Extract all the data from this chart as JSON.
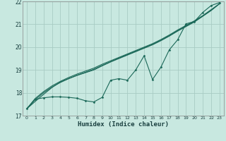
{
  "title": "",
  "xlabel": "Humidex (Indice chaleur)",
  "bg_color": "#c8e8e0",
  "grid_color": "#a8ccc4",
  "line_color": "#1a6858",
  "xlim": [
    -0.5,
    23.5
  ],
  "ylim": [
    17.0,
    22.0
  ],
  "xticks": [
    0,
    1,
    2,
    3,
    4,
    5,
    6,
    7,
    8,
    9,
    10,
    11,
    12,
    13,
    14,
    15,
    16,
    17,
    18,
    19,
    20,
    21,
    22,
    23
  ],
  "yticks": [
    17,
    18,
    19,
    20,
    21,
    22
  ],
  "x_data": [
    0,
    1,
    2,
    3,
    4,
    5,
    6,
    7,
    8,
    9,
    10,
    11,
    12,
    13,
    14,
    15,
    16,
    17,
    18,
    19,
    20,
    21,
    22,
    23
  ],
  "jagged_y": [
    17.3,
    17.72,
    17.78,
    17.82,
    17.82,
    17.8,
    17.76,
    17.65,
    17.6,
    17.8,
    18.55,
    18.62,
    18.55,
    19.0,
    19.62,
    18.58,
    19.12,
    19.88,
    20.32,
    21.02,
    21.12,
    21.52,
    21.82,
    21.95
  ],
  "line1_y": [
    17.3,
    17.62,
    17.93,
    18.23,
    18.47,
    18.62,
    18.76,
    18.88,
    19.0,
    19.18,
    19.35,
    19.5,
    19.65,
    19.8,
    19.95,
    20.1,
    20.28,
    20.48,
    20.7,
    20.9,
    21.1,
    21.35,
    21.6,
    21.9
  ],
  "line2_y": [
    17.3,
    17.7,
    18.0,
    18.25,
    18.45,
    18.62,
    18.77,
    18.9,
    19.03,
    19.2,
    19.36,
    19.52,
    19.67,
    19.82,
    19.97,
    20.12,
    20.3,
    20.5,
    20.72,
    20.92,
    21.12,
    21.36,
    21.62,
    21.9
  ],
  "line3_y": [
    17.3,
    17.75,
    18.05,
    18.3,
    18.5,
    18.67,
    18.82,
    18.95,
    19.08,
    19.25,
    19.4,
    19.55,
    19.7,
    19.85,
    20.0,
    20.15,
    20.33,
    20.53,
    20.75,
    20.95,
    21.15,
    21.38,
    21.64,
    21.9
  ]
}
